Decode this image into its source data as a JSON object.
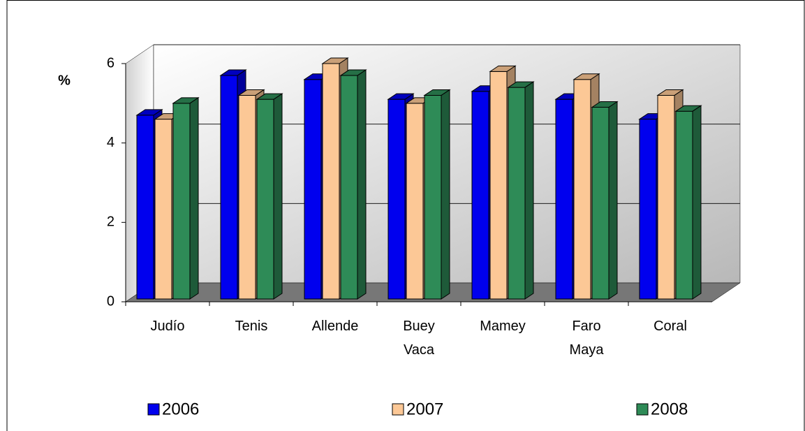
{
  "chart_data": {
    "type": "bar3d",
    "y_label": "%",
    "categories": [
      "Judío",
      "Tenis",
      "Allende",
      "Buey Vaca",
      "Mamey",
      "Faro Maya",
      "Coral"
    ],
    "series": [
      {
        "name": "2006",
        "color": "#0000ee",
        "values": [
          4.7,
          5.7,
          5.6,
          5.1,
          5.3,
          5.1,
          4.6
        ]
      },
      {
        "name": "2007",
        "color": "#fcc896",
        "values": [
          4.6,
          5.2,
          6.0,
          5.0,
          5.8,
          5.6,
          5.2
        ]
      },
      {
        "name": "2008",
        "color": "#2e8b57",
        "values": [
          5.0,
          5.1,
          5.7,
          5.2,
          5.4,
          4.9,
          4.8
        ]
      }
    ],
    "ylim": [
      0,
      6
    ],
    "yticks": [
      0,
      2,
      4,
      6
    ],
    "grid": true
  }
}
